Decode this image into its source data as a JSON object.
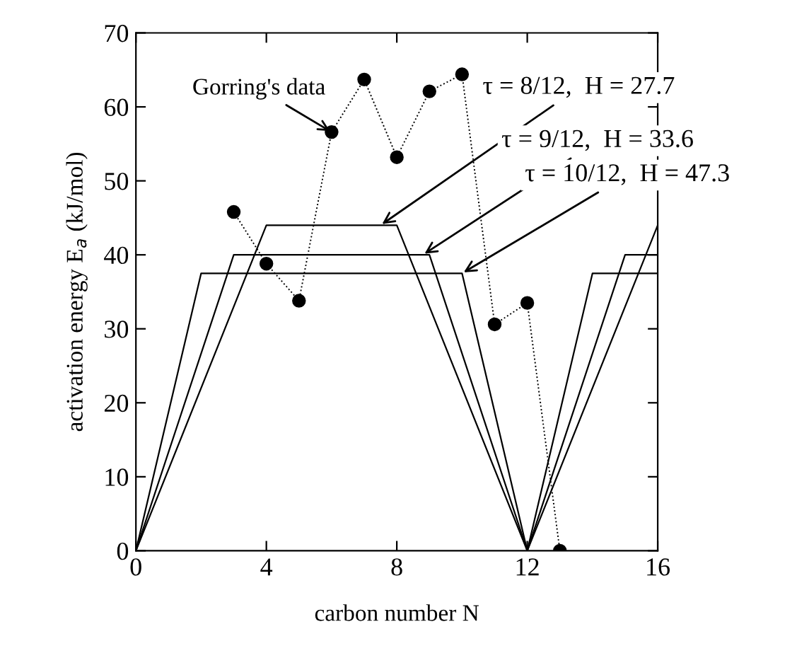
{
  "chart_data": {
    "type": "line",
    "xlabel": "carbon number N",
    "ylabel": "activation energy E$_{a}$ (kJ/mol)",
    "xlim": [
      0,
      16
    ],
    "ylim": [
      0,
      70
    ],
    "xticks": [
      0,
      4,
      8,
      12,
      16
    ],
    "yticks": [
      0,
      10,
      20,
      30,
      40,
      50,
      60,
      70
    ],
    "grid": false,
    "legend": false,
    "series": [
      {
        "marker": "circle",
        "line_style": "dotted",
        "color": "#000000",
        "x": [
          3,
          4,
          5,
          6,
          7,
          8,
          9,
          10,
          11,
          12,
          13
        ],
        "values": [
          45.8,
          38.8,
          33.8,
          56.6,
          63.7,
          53.2,
          62.1,
          64.4,
          30.6,
          33.5,
          0
        ]
      },
      {
        "marker": "none",
        "line_style": "solid",
        "color": "#000000",
        "x": [
          0,
          4,
          8,
          12,
          16
        ],
        "values": [
          0,
          44,
          44,
          0,
          44
        ]
      },
      {
        "marker": "none",
        "line_style": "solid",
        "color": "#000000",
        "x": [
          0,
          3,
          9,
          12,
          15,
          16
        ],
        "values": [
          0,
          40,
          40,
          0,
          40,
          40
        ]
      },
      {
        "marker": "none",
        "line_style": "solid",
        "color": "#000000",
        "x": [
          0,
          2,
          10,
          12,
          14,
          16
        ],
        "values": [
          0,
          37.5,
          37.5,
          0,
          37.5,
          37.5
        ]
      }
    ],
    "annotations": [
      {
        "text": "Gorring's data",
        "x": 6,
        "y": 56.6
      },
      {
        "text": "τ = 8/12,  H = 27.7",
        "x": 7.5,
        "y": 44
      },
      {
        "text": "τ = 9/12,  H = 33.6",
        "x": 8.8,
        "y": 40
      },
      {
        "text": "τ = 10/12,  H = 47.3",
        "x": 10,
        "y": 37.5
      }
    ]
  }
}
